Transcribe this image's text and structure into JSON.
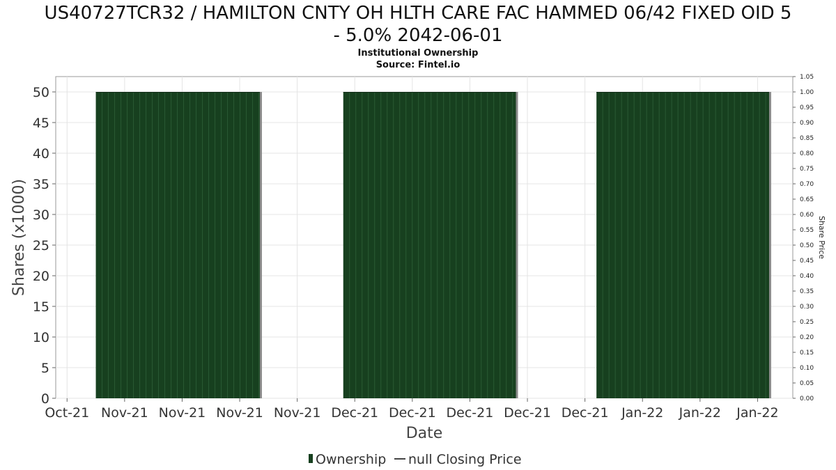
{
  "chart_data": {
    "type": "bar",
    "title": "US40727TCR32 / HAMILTON CNTY OH HLTH CARE FAC HAMMED 06/42 FIXED OID 5 - 5.0% 2042-06-01",
    "title_lines": [
      "US40727TCR32 / HAMILTON CNTY OH HLTH CARE FAC HAMMED 06/42 FIXED OID 5",
      "- 5.0% 2042-06-01"
    ],
    "subtitle": "Institutional Ownership",
    "source": "Source: Fintel.io",
    "xlabel": "Date",
    "ylabel": "Shares (x1000)",
    "y2label": "Share Price",
    "x_tick_labels": [
      "Oct-21",
      "Nov-21",
      "Nov-21",
      "Nov-21",
      "Nov-21",
      "Dec-21",
      "Dec-21",
      "Dec-21",
      "Dec-21",
      "Dec-21",
      "Jan-22",
      "Jan-22",
      "Jan-22"
    ],
    "ylim": [
      0,
      52.5
    ],
    "y_ticks": [
      0,
      5,
      10,
      15,
      20,
      25,
      30,
      35,
      40,
      45,
      50
    ],
    "y2lim": [
      0,
      1.05
    ],
    "y2_ticks": [
      "0.00",
      "0.05",
      "0.10",
      "0.15",
      "0.20",
      "0.25",
      "0.30",
      "0.35",
      "0.40",
      "0.45",
      "0.50",
      "0.55",
      "0.60",
      "0.65",
      "0.70",
      "0.75",
      "0.80",
      "0.85",
      "0.90",
      "0.95",
      "1.00",
      "1.05"
    ],
    "x_domain": [
      -0.1,
      12.6
    ],
    "grid": true,
    "series": [
      {
        "name": "Ownership",
        "color": "#17401f",
        "blocks": [
          {
            "start": 0.5,
            "end": 3.35,
            "value": 50
          },
          {
            "start": 4.8,
            "end": 7.8,
            "value": 50
          },
          {
            "start": 9.2,
            "end": 12.2,
            "value": 50
          }
        ]
      },
      {
        "name": "null Closing Price",
        "color": "#444444",
        "values": []
      }
    ],
    "legend": [
      {
        "label": "Ownership",
        "marker": "bar",
        "color": "#17401f"
      },
      {
        "label": "null Closing Price",
        "marker": "line",
        "color": "#444444"
      }
    ],
    "legend_position": "bottom-center"
  }
}
